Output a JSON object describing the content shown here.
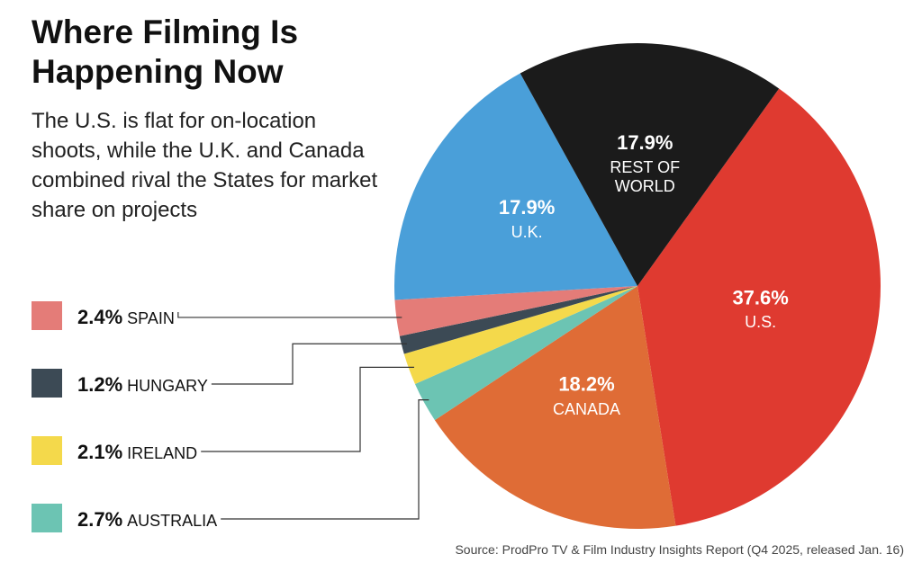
{
  "chart_data": {
    "type": "pie",
    "title": "Where Filming Is Happening Now",
    "subtitle": "The U.S. is flat for on-location shoots, while the U.K. and Canada combined rival the States for market share on projects",
    "source": "Source: ProdPro TV & Film Industry Insights Report (Q4 2025, released Jan. 16)",
    "categories": [
      "U.S.",
      "CANADA",
      "AUSTRALIA",
      "IRELAND",
      "HUNGARY",
      "SPAIN",
      "U.K.",
      "REST OF WORLD"
    ],
    "values": [
      37.6,
      18.2,
      2.7,
      2.1,
      1.2,
      2.4,
      17.9,
      17.9
    ],
    "value_labels": [
      "37.6%",
      "18.2%",
      "2.7%",
      "2.1%",
      "1.2%",
      "2.4%",
      "17.9%",
      "17.9%"
    ],
    "colors": [
      "#df3a30",
      "#df6c36",
      "#6cc4b3",
      "#f4d94b",
      "#3c4a55",
      "#e47c78",
      "#4a9fd9",
      "#1b1b1b"
    ]
  }
}
